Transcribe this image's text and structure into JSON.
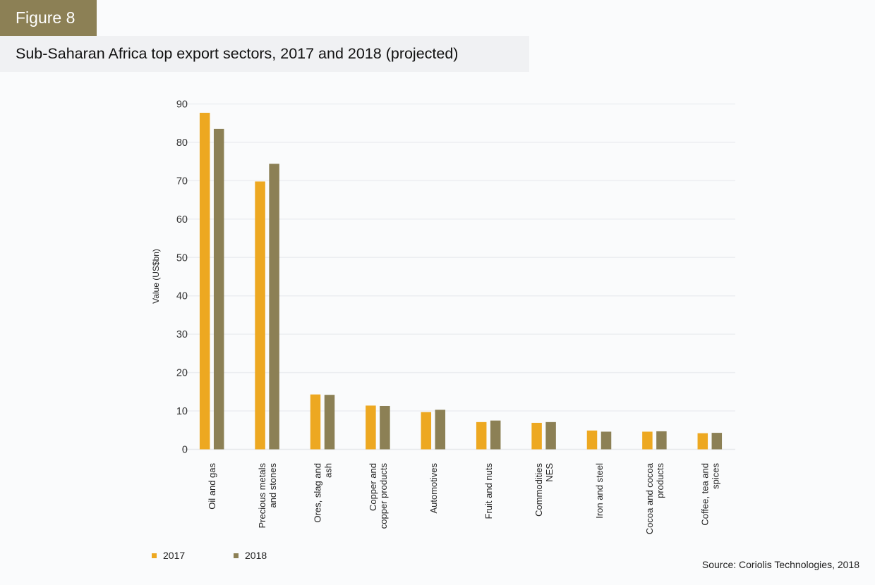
{
  "header": {
    "figure_label": "Figure 8",
    "title": "Sub-Saharan Africa top export sectors, 2017 and 2018 (projected)"
  },
  "source": "Source: Coriolis Technologies, 2018",
  "colors": {
    "series_2017": "#eda821",
    "series_2018": "#8c8055",
    "gridline": "#ebedf0",
    "header_badge": "#8c8055",
    "subtitle_band": "#f0f1f3"
  },
  "chart_data": {
    "type": "bar",
    "title": "Sub-Saharan Africa top export sectors, 2017 and 2018 (projected)",
    "xlabel": "",
    "ylabel": "Value (US$bn)",
    "ylim": [
      0,
      90
    ],
    "yticks": [
      0,
      10,
      20,
      30,
      40,
      50,
      60,
      70,
      80,
      90
    ],
    "grid": true,
    "legend_position": "bottom-left",
    "categories": [
      [
        "Oil and gas"
      ],
      [
        "Precious metals",
        "and stones"
      ],
      [
        "Ores, slag and",
        "ash"
      ],
      [
        "Copper and",
        "copper products"
      ],
      [
        "Automotives"
      ],
      [
        "Fruit and nuts"
      ],
      [
        "Commodities",
        "NES"
      ],
      [
        "Iron and steel"
      ],
      [
        "Cocoa and cocoa",
        "products"
      ],
      [
        "Coffee, tea and",
        "spices"
      ]
    ],
    "series": [
      {
        "name": "2017",
        "color": "#eda821",
        "values": [
          87.7,
          69.8,
          14.3,
          11.4,
          9.7,
          7.1,
          6.9,
          4.9,
          4.6,
          4.2
        ]
      },
      {
        "name": "2018",
        "color": "#8c8055",
        "values": [
          83.5,
          74.4,
          14.2,
          11.3,
          10.3,
          7.5,
          7.1,
          4.6,
          4.7,
          4.3
        ]
      }
    ]
  }
}
